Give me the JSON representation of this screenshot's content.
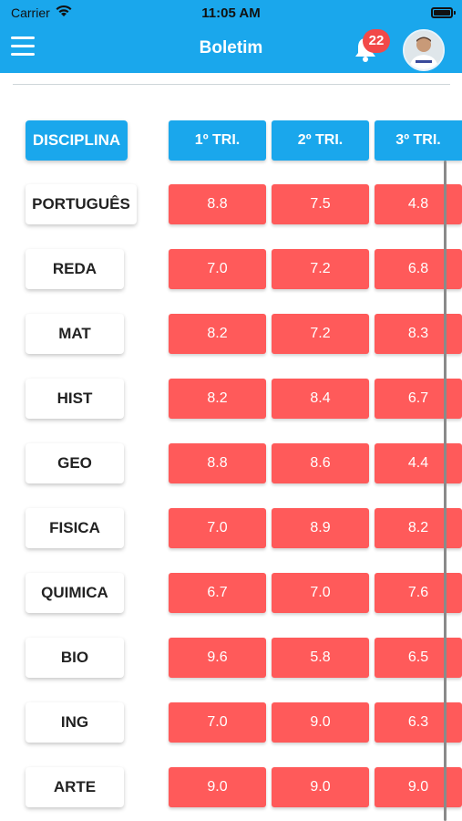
{
  "status_bar": {
    "carrier": "Carrier",
    "time": "11:05 AM"
  },
  "nav": {
    "title": "Boletim",
    "notification_count": "22",
    "accent_color": "#1aa7ec"
  },
  "table": {
    "header": {
      "discipline": "DISCIPLINA",
      "columns": [
        "1º TRI.",
        "2º TRI.",
        "3º TRI."
      ]
    },
    "rows": [
      {
        "subject": "PORTUGUÊS",
        "grades": [
          "8.8",
          "7.5",
          "4.8"
        ]
      },
      {
        "subject": "REDA",
        "grades": [
          "7.0",
          "7.2",
          "6.8"
        ]
      },
      {
        "subject": "MAT",
        "grades": [
          "8.2",
          "7.2",
          "8.3"
        ]
      },
      {
        "subject": "HIST",
        "grades": [
          "8.2",
          "8.4",
          "6.7"
        ]
      },
      {
        "subject": "GEO",
        "grades": [
          "8.8",
          "8.6",
          "4.4"
        ]
      },
      {
        "subject": "FISICA",
        "grades": [
          "7.0",
          "8.9",
          "8.2"
        ]
      },
      {
        "subject": "QUIMICA",
        "grades": [
          "6.7",
          "7.0",
          "7.6"
        ]
      },
      {
        "subject": "BIO",
        "grades": [
          "9.6",
          "5.8",
          "6.5"
        ]
      },
      {
        "subject": "ING",
        "grades": [
          "7.0",
          "9.0",
          "6.3"
        ]
      },
      {
        "subject": "ARTE",
        "grades": [
          "9.0",
          "9.0",
          "9.0"
        ]
      }
    ],
    "grade_color": "#ff5a5a"
  }
}
